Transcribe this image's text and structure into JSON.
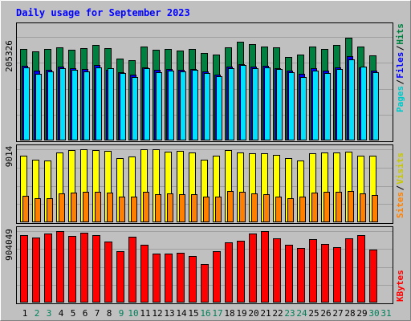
{
  "chart_data": {
    "type": "bar",
    "title": "Daily usage for September 2023",
    "days": [
      "1",
      "2",
      "3",
      "4",
      "5",
      "6",
      "7",
      "8",
      "9",
      "10",
      "11",
      "12",
      "13",
      "14",
      "15",
      "16",
      "17",
      "18",
      "19",
      "20",
      "21",
      "22",
      "23",
      "24",
      "25",
      "26",
      "27",
      "28",
      "29",
      "30",
      "31"
    ],
    "weekend_days": [
      "2",
      "3",
      "9",
      "10",
      "16",
      "17",
      "23",
      "24",
      "30",
      "31"
    ],
    "panels": [
      {
        "name": "hits-files-pages",
        "max_label": "205326",
        "max_value": 205326,
        "series": [
          {
            "name": "Hits",
            "color": "#008040",
            "values": [
              181000,
              176000,
              181000,
              185000,
              180000,
              183000,
              189000,
              183000,
              162000,
              159000,
              186000,
              180000,
              181000,
              179000,
              181000,
              174000,
              171000,
              185000,
              195000,
              191000,
              187000,
              184000,
              166000,
              170000,
              187000,
              182000,
              189000,
              204000,
              186000,
              169000,
              0
            ]
          },
          {
            "name": "Files",
            "color": "#0000ff",
            "values": [
              148000,
              139000,
              140000,
              147000,
              144000,
              142000,
              150000,
              140000,
              136000,
              130000,
              145000,
              140000,
              141000,
              140000,
              142000,
              137000,
              131000,
              147000,
              152000,
              146000,
              148000,
              143000,
              138000,
              132000,
              144000,
              138000,
              145000,
              167000,
              145000,
              138000,
              0
            ]
          },
          {
            "name": "Pages",
            "color": "#00e0ff",
            "values": [
              145000,
              132000,
              137000,
              143000,
              140000,
              137000,
              145000,
              144000,
              134000,
              125000,
              143000,
              136000,
              138000,
              137000,
              140000,
              133000,
              127000,
              143000,
              150000,
              144000,
              145000,
              142000,
              136000,
              126000,
              139000,
              133000,
              142000,
              160000,
              147000,
              136000,
              0
            ]
          }
        ]
      },
      {
        "name": "visits-sites",
        "max_label": "9014",
        "max_value": 9014,
        "series": [
          {
            "name": "Visits",
            "color": "#ffff00",
            "values": [
              8200,
              7700,
              7600,
              8600,
              8900,
              9050,
              8950,
              8800,
              7900,
              8100,
              9050,
              9050,
              8700,
              8800,
              8600,
              7700,
              8200,
              8900,
              8600,
              8500,
              8500,
              8300,
              7900,
              7600,
              8500,
              8600,
              8600,
              8700,
              8200,
              8200,
              0
            ]
          },
          {
            "name": "Sites",
            "color": "#ff8000",
            "values": [
              3300,
              3000,
              3000,
              3600,
              3700,
              3800,
              3800,
              3700,
              3200,
              3200,
              3800,
              3500,
              3600,
              3500,
              3500,
              3200,
              3200,
              3900,
              3800,
              3600,
              3500,
              3200,
              3000,
              3200,
              3700,
              3800,
              3800,
              3900,
              3600,
              3400,
              0
            ]
          }
        ]
      },
      {
        "name": "kbytes",
        "max_label": "904049",
        "max_value": 904049,
        "series": [
          {
            "name": "KBytes",
            "color": "#ff0000",
            "values": [
              850000,
              822000,
              877000,
              904049,
              844000,
              886000,
              855000,
              775000,
              646000,
              836000,
              727000,
              618000,
              618000,
              631000,
              590000,
              489000,
              650000,
              757000,
              784000,
              871000,
              904049,
              816000,
              734000,
              688000,
              800000,
              740000,
              702000,
              809000,
              855000,
              675000,
              0
            ]
          }
        ]
      }
    ],
    "legend_right": [
      {
        "panel": 0,
        "labels": [
          {
            "text": "Pages",
            "color": "#00c8c8"
          },
          {
            "text": "/",
            "color": "#000000"
          },
          {
            "text": "Files",
            "color": "#0000ff"
          },
          {
            "text": "/",
            "color": "#000000"
          },
          {
            "text": "Hits",
            "color": "#008040"
          }
        ]
      },
      {
        "panel": 1,
        "labels": [
          {
            "text": "Sites",
            "color": "#ff8000"
          },
          {
            "text": "/",
            "color": "#000000"
          },
          {
            "text": "Visits",
            "color": "#c8c800"
          }
        ]
      },
      {
        "panel": 2,
        "labels": [
          {
            "text": "KBytes",
            "color": "#ff0000"
          }
        ]
      }
    ],
    "colors": {
      "background": "#c0c0c0",
      "grid": "#a0a0a0",
      "title": "#0000ff",
      "weekday_label": "#000000",
      "weekend_label": "#00805a"
    }
  }
}
